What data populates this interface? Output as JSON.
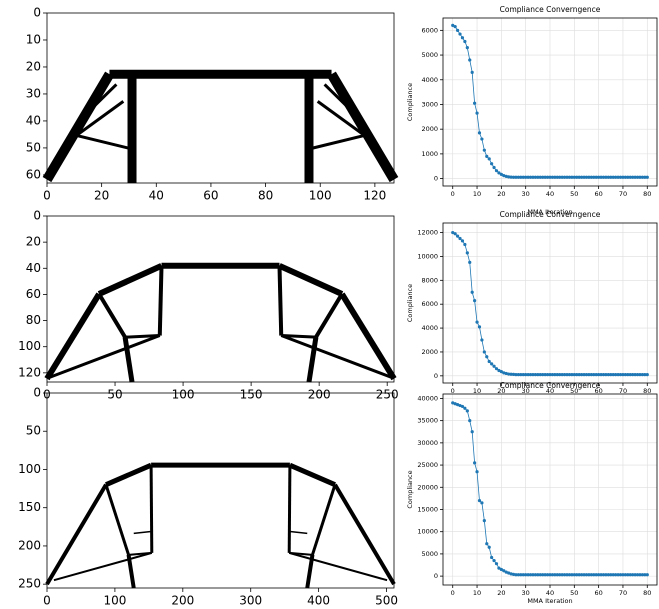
{
  "chart_data": [
    {
      "type": "image",
      "xlim": [
        0,
        127
      ],
      "ylim": [
        0,
        63
      ],
      "y_inverted": true,
      "xticks": [
        0,
        20,
        40,
        60,
        80,
        100,
        120
      ],
      "yticks": [
        0,
        10,
        20,
        30,
        40,
        50,
        60
      ]
    },
    {
      "type": "image",
      "xlim": [
        0,
        255
      ],
      "ylim": [
        0,
        127
      ],
      "y_inverted": true,
      "xticks": [
        0,
        50,
        100,
        150,
        200,
        250
      ],
      "yticks": [
        0,
        20,
        40,
        60,
        80,
        100,
        120
      ]
    },
    {
      "type": "image",
      "xlim": [
        0,
        511
      ],
      "ylim": [
        0,
        255
      ],
      "y_inverted": true,
      "xticks": [
        0,
        100,
        200,
        300,
        400,
        500
      ],
      "yticks": [
        0,
        50,
        100,
        150,
        200,
        250
      ]
    },
    {
      "type": "line",
      "title": "Compliance Converngence",
      "xlabel": "MMA Iteration",
      "ylabel": "Compliance",
      "color": "#1f77b4",
      "grid": true,
      "xlim": [
        -4,
        84
      ],
      "ylim": [
        -300,
        6500
      ],
      "xticks": [
        0,
        10,
        20,
        30,
        40,
        50,
        60,
        70,
        80
      ],
      "yticks": [
        0,
        1000,
        2000,
        3000,
        4000,
        5000,
        6000
      ],
      "x": [
        0,
        1,
        2,
        3,
        4,
        5,
        6,
        7,
        8,
        9,
        10,
        11,
        12,
        13,
        14,
        15,
        16,
        17,
        18,
        19,
        20,
        21,
        22,
        23,
        24,
        25,
        26,
        27,
        28,
        29,
        30,
        31,
        32,
        33,
        34,
        35,
        36,
        37,
        38,
        39,
        40,
        41,
        42,
        43,
        44,
        45,
        46,
        47,
        48,
        49,
        50,
        51,
        52,
        53,
        54,
        55,
        56,
        57,
        58,
        59,
        60,
        61,
        62,
        63,
        64,
        65,
        66,
        67,
        68,
        69,
        70,
        71,
        72,
        73,
        74,
        75,
        76,
        77,
        78,
        79,
        80
      ],
      "values": [
        6200,
        6150,
        6000,
        5850,
        5700,
        5550,
        5300,
        4800,
        4300,
        3050,
        2650,
        1850,
        1600,
        1150,
        900,
        800,
        600,
        450,
        320,
        230,
        170,
        120,
        90,
        70,
        60,
        55,
        55,
        55,
        55,
        55,
        55,
        55,
        55,
        55,
        55,
        55,
        55,
        55,
        55,
        55,
        55,
        55,
        55,
        55,
        55,
        55,
        55,
        55,
        55,
        55,
        55,
        55,
        55,
        55,
        55,
        55,
        55,
        55,
        55,
        55,
        55,
        55,
        55,
        55,
        55,
        55,
        55,
        55,
        55,
        55,
        55,
        55,
        55,
        55,
        55,
        55,
        55,
        55,
        55,
        55,
        55
      ]
    },
    {
      "type": "line",
      "title": "Compliance Converngence",
      "ylabel": "Compliance",
      "color": "#1f77b4",
      "grid": true,
      "xlim": [
        -4,
        84
      ],
      "ylim": [
        -600,
        12800
      ],
      "xticks": [
        0,
        10,
        20,
        30,
        40,
        50,
        60,
        70,
        80
      ],
      "yticks": [
        0,
        2000,
        4000,
        6000,
        8000,
        10000,
        12000
      ],
      "x": [
        0,
        1,
        2,
        3,
        4,
        5,
        6,
        7,
        8,
        9,
        10,
        11,
        12,
        13,
        14,
        15,
        16,
        17,
        18,
        19,
        20,
        21,
        22,
        23,
        24,
        25,
        26,
        27,
        28,
        29,
        30,
        31,
        32,
        33,
        34,
        35,
        36,
        37,
        38,
        39,
        40,
        41,
        42,
        43,
        44,
        45,
        46,
        47,
        48,
        49,
        50,
        51,
        52,
        53,
        54,
        55,
        56,
        57,
        58,
        59,
        60,
        61,
        62,
        63,
        64,
        65,
        66,
        67,
        68,
        69,
        70,
        71,
        72,
        73,
        74,
        75,
        76,
        77,
        78,
        79,
        80
      ],
      "values": [
        12000,
        11900,
        11700,
        11500,
        11300,
        11000,
        10300,
        9500,
        7000,
        6300,
        4500,
        4100,
        3000,
        2000,
        1600,
        1200,
        1000,
        800,
        600,
        450,
        350,
        250,
        200,
        150,
        130,
        120,
        100,
        100,
        100,
        100,
        100,
        100,
        100,
        100,
        100,
        100,
        100,
        100,
        100,
        100,
        100,
        100,
        100,
        100,
        100,
        100,
        100,
        100,
        100,
        100,
        100,
        100,
        100,
        100,
        100,
        100,
        100,
        100,
        100,
        100,
        100,
        100,
        100,
        100,
        100,
        100,
        100,
        100,
        100,
        100,
        100,
        100,
        100,
        100,
        100,
        100,
        100,
        100,
        100,
        100,
        100
      ]
    },
    {
      "type": "line",
      "title": "Compliance Converngence",
      "xlabel": "MMA Iteration",
      "ylabel": "Compliance",
      "color": "#1f77b4",
      "grid": true,
      "xlim": [
        -4,
        84
      ],
      "ylim": [
        -2000,
        41000
      ],
      "xticks": [
        0,
        10,
        20,
        30,
        40,
        50,
        60,
        70,
        80
      ],
      "yticks": [
        0,
        5000,
        10000,
        15000,
        20000,
        25000,
        30000,
        35000,
        40000
      ],
      "x": [
        0,
        1,
        2,
        3,
        4,
        5,
        6,
        7,
        8,
        9,
        10,
        11,
        12,
        13,
        14,
        15,
        16,
        17,
        18,
        19,
        20,
        21,
        22,
        23,
        24,
        25,
        26,
        27,
        28,
        29,
        30,
        31,
        32,
        33,
        34,
        35,
        36,
        37,
        38,
        39,
        40,
        41,
        42,
        43,
        44,
        45,
        46,
        47,
        48,
        49,
        50,
        51,
        52,
        53,
        54,
        55,
        56,
        57,
        58,
        59,
        60,
        61,
        62,
        63,
        64,
        65,
        66,
        67,
        68,
        69,
        70,
        71,
        72,
        73,
        74,
        75,
        76,
        77,
        78,
        79,
        80
      ],
      "values": [
        39000,
        38800,
        38600,
        38400,
        38200,
        37800,
        37200,
        35000,
        32500,
        25500,
        23500,
        17000,
        16500,
        12500,
        7300,
        6500,
        4200,
        3500,
        2800,
        1800,
        1500,
        1200,
        900,
        700,
        500,
        400,
        300,
        300,
        300,
        300,
        300,
        300,
        300,
        300,
        300,
        300,
        300,
        300,
        300,
        300,
        300,
        300,
        300,
        300,
        300,
        300,
        300,
        300,
        300,
        300,
        300,
        300,
        300,
        300,
        300,
        300,
        300,
        300,
        300,
        300,
        300,
        300,
        300,
        300,
        300,
        300,
        300,
        300,
        300,
        300,
        300,
        300,
        300,
        300,
        300,
        300,
        300,
        300,
        300,
        300,
        300
      ]
    }
  ]
}
